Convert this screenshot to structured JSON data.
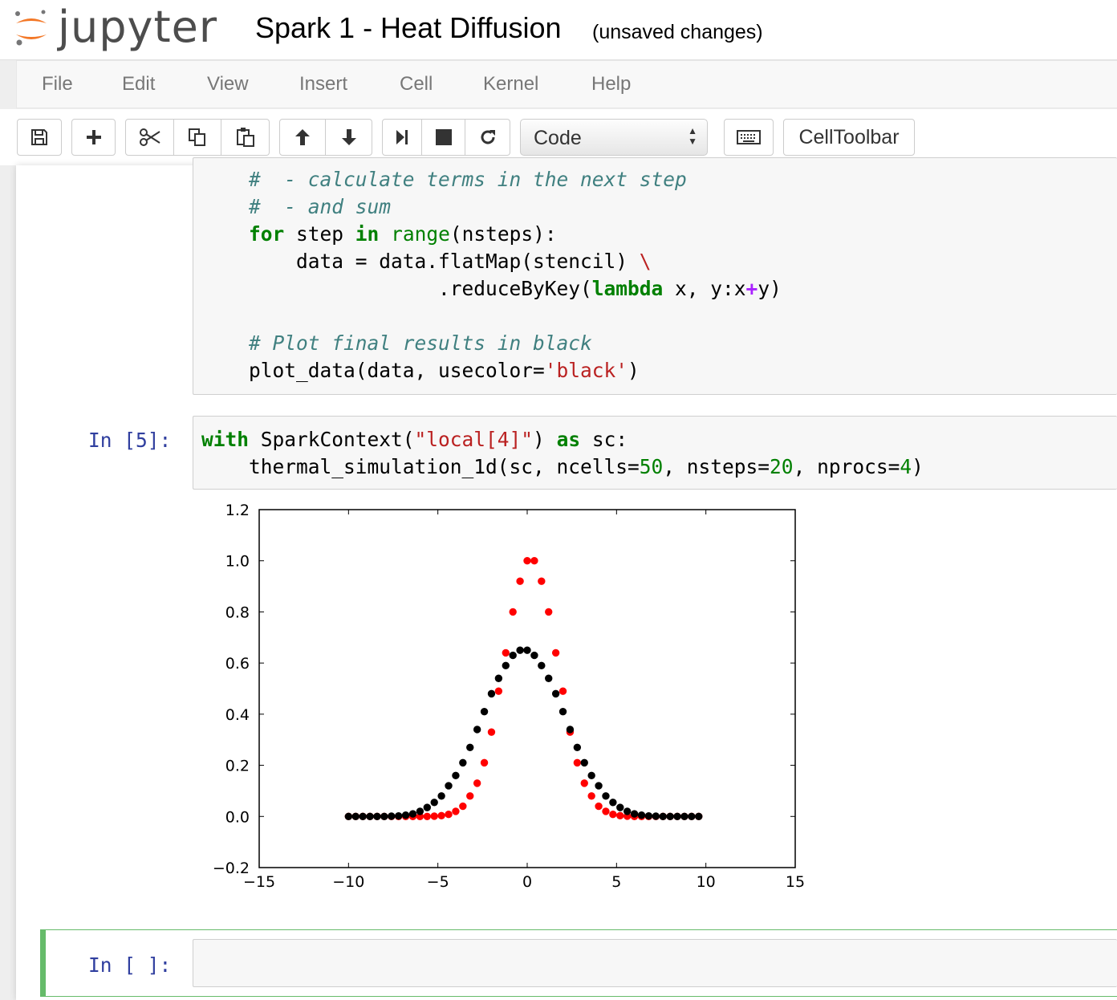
{
  "header": {
    "logo_text": "jupyter",
    "notebook_title": "Spark 1 - Heat Diffusion",
    "save_status": "(unsaved changes)"
  },
  "menu": [
    "File",
    "Edit",
    "View",
    "Insert",
    "Cell",
    "Kernel",
    "Help"
  ],
  "toolbar": {
    "cell_type": "Code",
    "celltoolbar_label": "CellToolbar",
    "icons": [
      "save-icon",
      "plus-icon",
      "cut-icon",
      "copy-icon",
      "paste-icon",
      "arrow-up-icon",
      "arrow-down-icon",
      "step-forward-icon",
      "stop-icon",
      "restart-icon",
      "keyboard-icon"
    ]
  },
  "cells": [
    {
      "prompt": "",
      "code_lines": [
        "    #  - calculate terms in the next step",
        "    #  - and sum",
        "    for step in range(nsteps):",
        "        data = data.flatMap(stencil) \\",
        "                    .reduceByKey(lambda x, y:x+y)",
        "",
        "    # Plot final results in black",
        "    plot_data(data, usecolor='black')"
      ]
    },
    {
      "prompt": "In [5]:",
      "code_lines": [
        "with SparkContext(\"local[4]\") as sc:",
        "    thermal_simulation_1d(sc, ncells=50, nsteps=20, nprocs=4)"
      ]
    },
    {
      "prompt": "In [ ]:",
      "code_lines": []
    }
  ],
  "chart_data": {
    "type": "scatter",
    "title": "",
    "xlabel": "",
    "ylabel": "",
    "xlim": [
      -15,
      15
    ],
    "ylim": [
      -0.2,
      1.2
    ],
    "xticks": [
      "−15",
      "−10",
      "−5",
      "0",
      "5",
      "10",
      "15"
    ],
    "yticks": [
      "−0.2",
      "0.0",
      "0.2",
      "0.4",
      "0.6",
      "0.8",
      "1.0",
      "1.2"
    ],
    "grid": false,
    "series": [
      {
        "color": "#ff0000",
        "x": [
          -10,
          -9.6,
          -9.2,
          -8.8,
          -8.4,
          -8,
          -7.6,
          -7.2,
          -6.8,
          -6.4,
          -6,
          -5.6,
          -5.2,
          -4.8,
          -4.4,
          -4,
          -3.6,
          -3.2,
          -2.8,
          -2.4,
          -2,
          -1.6,
          -1.2,
          -0.8,
          -0.4,
          0,
          0.4,
          0.8,
          1.2,
          1.6,
          2,
          2.4,
          2.8,
          3.2,
          3.6,
          4,
          4.4,
          4.8,
          5.2,
          5.6,
          6,
          6.4,
          6.8,
          7.2,
          7.6,
          8,
          8.4,
          8.8,
          9.2,
          9.6
        ],
        "values": [
          0,
          0,
          0,
          0,
          0,
          0,
          0,
          0,
          0,
          0,
          0,
          0,
          0.001,
          0.003,
          0.008,
          0.02,
          0.04,
          0.08,
          0.13,
          0.21,
          0.33,
          0.49,
          0.64,
          0.8,
          0.92,
          1.0,
          1.0,
          0.92,
          0.8,
          0.64,
          0.49,
          0.33,
          0.21,
          0.13,
          0.08,
          0.04,
          0.02,
          0.008,
          0.003,
          0.001,
          0,
          0,
          0,
          0,
          0,
          0,
          0,
          0,
          0,
          0
        ]
      },
      {
        "color": "#000000",
        "x": [
          -10,
          -9.6,
          -9.2,
          -8.8,
          -8.4,
          -8,
          -7.6,
          -7.2,
          -6.8,
          -6.4,
          -6,
          -5.6,
          -5.2,
          -4.8,
          -4.4,
          -4,
          -3.6,
          -3.2,
          -2.8,
          -2.4,
          -2,
          -1.6,
          -1.2,
          -0.8,
          -0.4,
          0,
          0.4,
          0.8,
          1.2,
          1.6,
          2,
          2.4,
          2.8,
          3.2,
          3.6,
          4,
          4.4,
          4.8,
          5.2,
          5.6,
          6,
          6.4,
          6.8,
          7.2,
          7.6,
          8,
          8.4,
          8.8,
          9.2,
          9.6
        ],
        "values": [
          0,
          0,
          0,
          0,
          0,
          0,
          0.001,
          0.002,
          0.005,
          0.01,
          0.02,
          0.035,
          0.055,
          0.08,
          0.12,
          0.16,
          0.21,
          0.27,
          0.34,
          0.41,
          0.48,
          0.54,
          0.59,
          0.63,
          0.65,
          0.65,
          0.63,
          0.59,
          0.54,
          0.48,
          0.41,
          0.34,
          0.27,
          0.21,
          0.16,
          0.12,
          0.08,
          0.055,
          0.035,
          0.02,
          0.01,
          0.005,
          0.002,
          0.001,
          0,
          0,
          0,
          0,
          0,
          0
        ]
      }
    ]
  }
}
